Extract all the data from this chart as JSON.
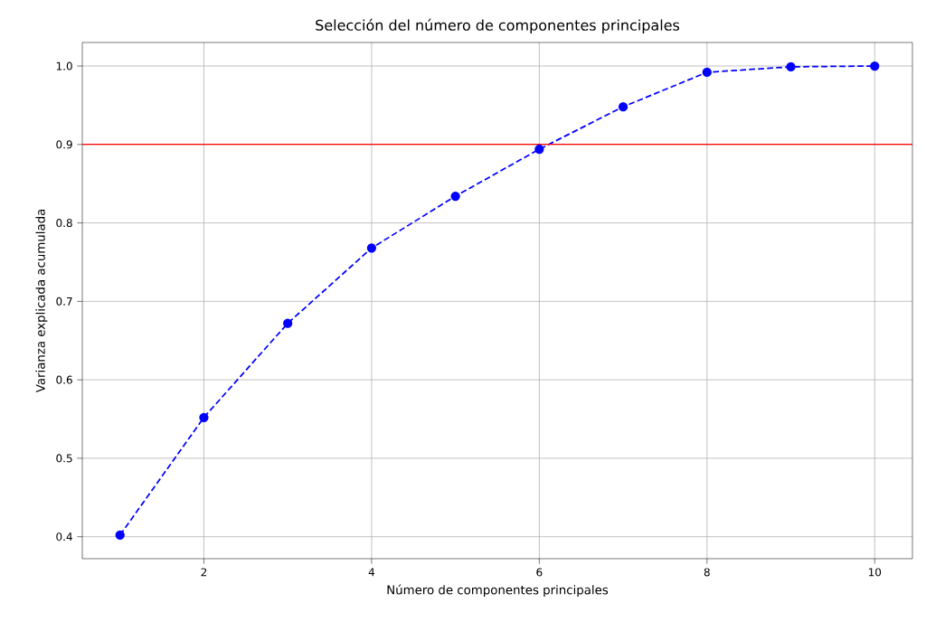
{
  "chart_data": {
    "type": "line",
    "title": "Selección del número de componentes principales",
    "xlabel": "Número de componentes principales",
    "ylabel": "Varianza explicada acumulada",
    "x": [
      1,
      2,
      3,
      4,
      5,
      6,
      7,
      8,
      9,
      10
    ],
    "series": [
      {
        "color": "#0000ff",
        "values": [
          0.402,
          0.552,
          0.672,
          0.768,
          0.834,
          0.894,
          0.948,
          0.992,
          0.999,
          1.0
        ]
      }
    ],
    "xlim": [
      0.55,
      10.45
    ],
    "ylim": [
      0.372,
      1.03
    ],
    "xticks": [
      2,
      4,
      6,
      8,
      10
    ],
    "yticks": [
      {
        "value": 0.4,
        "label": "0.4"
      },
      {
        "value": 0.5,
        "label": "0.5"
      },
      {
        "value": 0.6,
        "label": "0.6"
      },
      {
        "value": 0.7,
        "label": "0.7"
      },
      {
        "value": 0.8,
        "label": "0.8"
      },
      {
        "value": 0.9,
        "label": "0.9"
      },
      {
        "value": 1.0,
        "label": "1.0"
      }
    ],
    "ref_lines": [
      {
        "axis": "y",
        "value": 0.9,
        "color": "#ff0000"
      }
    ],
    "grid": true,
    "marker": "circle",
    "line_style": "dashed"
  }
}
